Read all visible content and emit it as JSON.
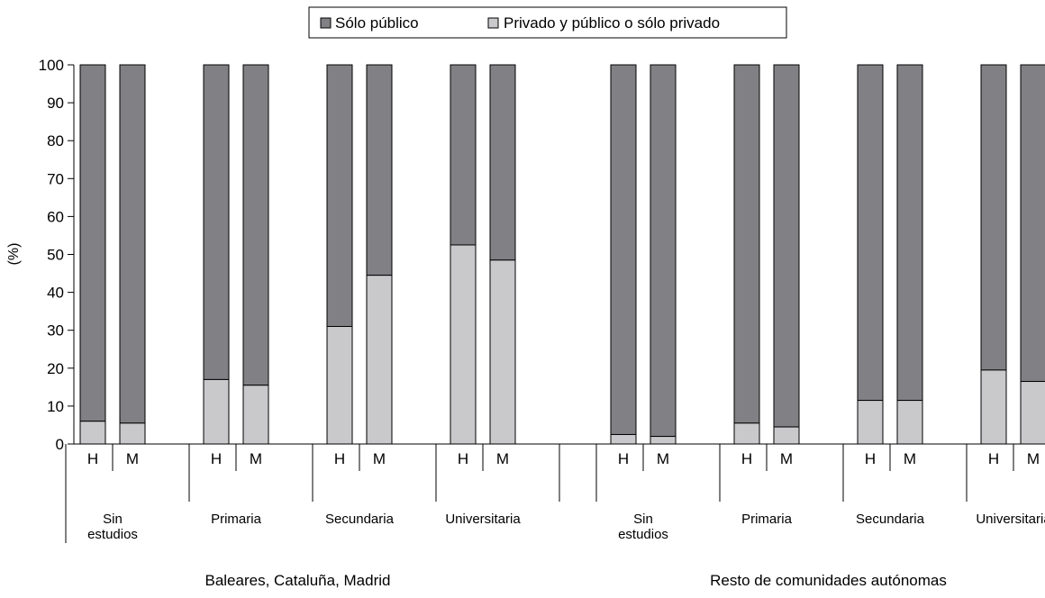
{
  "chart_data": {
    "type": "bar",
    "stacked": true,
    "ylabel": "(%)",
    "ylim": [
      0,
      100
    ],
    "yticks": [
      0,
      10,
      20,
      30,
      40,
      50,
      60,
      70,
      80,
      90,
      100
    ],
    "grid": false,
    "legend_position": "top-center",
    "legend": [
      {
        "key": "publico",
        "name": "Sólo público",
        "color": "#808085"
      },
      {
        "key": "privado",
        "name": "Privado y público o sólo privado",
        "color": "#c9c9cb"
      }
    ],
    "groups": [
      {
        "name": "Baleares, Cataluña, Madrid",
        "categories": [
          {
            "label": [
              "Sin",
              "estudios"
            ],
            "bars": [
              {
                "sex": "H",
                "privado": 6,
                "publico": 94
              },
              {
                "sex": "M",
                "privado": 5.5,
                "publico": 94.5
              }
            ]
          },
          {
            "label": [
              "Primaria"
            ],
            "bars": [
              {
                "sex": "H",
                "privado": 17,
                "publico": 83
              },
              {
                "sex": "M",
                "privado": 15.5,
                "publico": 84.5
              }
            ]
          },
          {
            "label": [
              "Secundaria"
            ],
            "bars": [
              {
                "sex": "H",
                "privado": 31,
                "publico": 69
              },
              {
                "sex": "M",
                "privado": 44.5,
                "publico": 55.5
              }
            ]
          },
          {
            "label": [
              "Universitaria"
            ],
            "bars": [
              {
                "sex": "H",
                "privado": 52.5,
                "publico": 47.5
              },
              {
                "sex": "M",
                "privado": 48.5,
                "publico": 51.5
              }
            ]
          }
        ]
      },
      {
        "name": "Resto de comunidades autónomas",
        "categories": [
          {
            "label": [
              "Sin",
              "estudios"
            ],
            "bars": [
              {
                "sex": "H",
                "privado": 2.5,
                "publico": 97.5
              },
              {
                "sex": "M",
                "privado": 2,
                "publico": 98
              }
            ]
          },
          {
            "label": [
              "Primaria"
            ],
            "bars": [
              {
                "sex": "H",
                "privado": 5.5,
                "publico": 94.5
              },
              {
                "sex": "M",
                "privado": 4.5,
                "publico": 95.5
              }
            ]
          },
          {
            "label": [
              "Secundaria"
            ],
            "bars": [
              {
                "sex": "H",
                "privado": 11.5,
                "publico": 88.5
              },
              {
                "sex": "M",
                "privado": 11.5,
                "publico": 88.5
              }
            ]
          },
          {
            "label": [
              "Universitaria"
            ],
            "bars": [
              {
                "sex": "H",
                "privado": 19.5,
                "publico": 80.5
              },
              {
                "sex": "M",
                "privado": 16.5,
                "publico": 83.5
              }
            ]
          }
        ]
      }
    ]
  }
}
